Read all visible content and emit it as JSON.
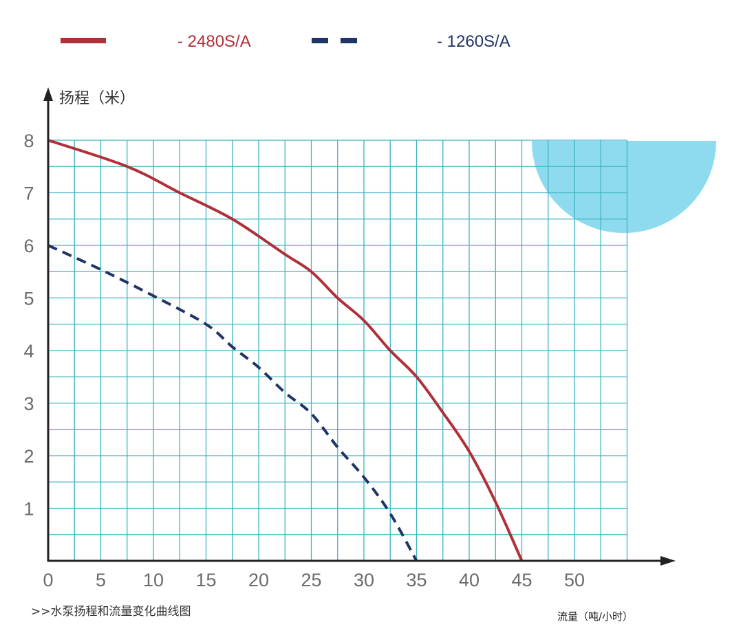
{
  "chart_data": {
    "type": "line",
    "ylabel": "扬程（米）",
    "xlabel": "流量（吨/小时）",
    "caption": ">>水泵扬程和流量变化曲线图",
    "xlim": [
      0,
      55
    ],
    "ylim": [
      0,
      8
    ],
    "x_ticks": [
      "0",
      "5",
      "10",
      "15",
      "20",
      "25",
      "30",
      "35",
      "40",
      "45",
      "50"
    ],
    "y_ticks": [
      "1",
      "2",
      "3",
      "4",
      "5",
      "6",
      "7",
      "8"
    ],
    "grid": true,
    "legend_placement": "top",
    "colors": {
      "grid": "#3db3c3",
      "accent_circle": "#8edbef",
      "axis": "#222222"
    },
    "series": [
      {
        "name": "- 2480S/A",
        "style": "solid",
        "color": "#b0303a",
        "x": [
          0,
          7.5,
          12.5,
          17.5,
          22.5,
          25,
          27.5,
          30,
          32.5,
          35,
          37.5,
          40,
          42.5,
          45
        ],
        "y": [
          8,
          7.5,
          7.0,
          6.5,
          5.83,
          5.5,
          5.0,
          4.57,
          4.0,
          3.5,
          2.82,
          2.08,
          1.12,
          0
        ]
      },
      {
        "name": "- 1260S/A",
        "style": "dashed",
        "color": "#1f3566",
        "x": [
          0,
          5,
          10,
          15,
          17.5,
          20,
          22.5,
          25,
          27.5,
          30,
          32.5,
          35
        ],
        "y": [
          6,
          5.54,
          5.04,
          4.5,
          4.07,
          3.68,
          3.2,
          2.8,
          2.16,
          1.59,
          0.9,
          0
        ]
      }
    ]
  }
}
